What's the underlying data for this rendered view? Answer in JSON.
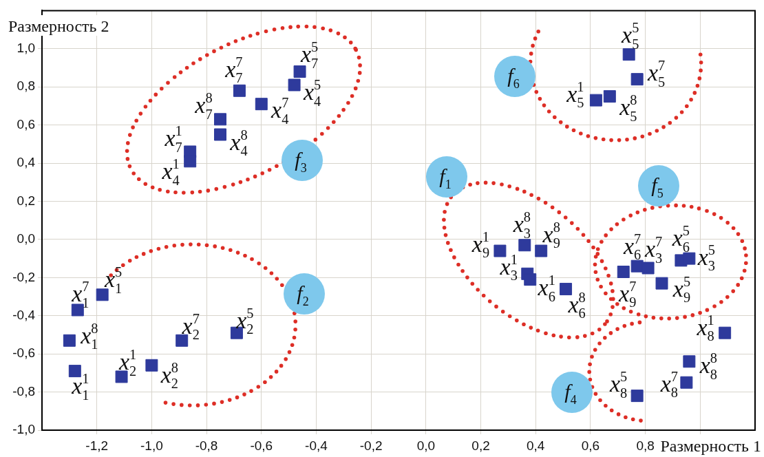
{
  "chart_data": {
    "type": "scatter",
    "xlabel": "Размерность 1",
    "ylabel": "Размерность 2",
    "xlim": [
      -1.4,
      1.2
    ],
    "ylim": [
      -1,
      1.2
    ],
    "xticks": [
      {
        "value": -1.2,
        "label": "-1,2"
      },
      {
        "value": -1,
        "label": "-1,0"
      },
      {
        "value": -0.8,
        "label": "-0,8"
      },
      {
        "value": -0.6,
        "label": "-0,6"
      },
      {
        "value": -0.4,
        "label": "-0,4"
      },
      {
        "value": -0.2,
        "label": "-0,2"
      },
      {
        "value": 0,
        "label": "0,0"
      },
      {
        "value": 0.2,
        "label": "0,2"
      },
      {
        "value": 0.4,
        "label": "0,4"
      },
      {
        "value": 0.6,
        "label": "0,6"
      },
      {
        "value": 0.8,
        "label": "0,8"
      },
      {
        "value": 1,
        "label": null
      }
    ],
    "yticks": [
      {
        "value": -1,
        "label": "-1,0"
      },
      {
        "value": -0.8,
        "label": "-0,8"
      },
      {
        "value": -0.6,
        "label": "-0,6"
      },
      {
        "value": -0.4,
        "label": "-0,4"
      },
      {
        "value": -0.2,
        "label": "-0,2"
      },
      {
        "value": 0,
        "label": "0,0"
      },
      {
        "value": 0.2,
        "label": "0,2"
      },
      {
        "value": 0.4,
        "label": "0,4"
      },
      {
        "value": 0.6,
        "label": "0,6"
      },
      {
        "value": 0.8,
        "label": "0,8"
      },
      {
        "value": 1,
        "label": "1,0"
      }
    ],
    "grid": true,
    "marker": "square",
    "series": [
      {
        "color": "#2e3a9c",
        "x": [
          -0.46,
          -0.48,
          -0.68,
          -0.6,
          -0.75,
          -0.75,
          -0.86,
          -0.86,
          0.74,
          0.77,
          0.67,
          0.62,
          -1.18,
          -1.27,
          -1.3,
          -1.28,
          -1.11,
          -1,
          -0.89,
          -0.69,
          0.27,
          0.36,
          0.42,
          0.37,
          0.38,
          0.51,
          0.72,
          0.77,
          0.81,
          0.86,
          0.93,
          0.96,
          1.09,
          0.96,
          0.95,
          0.77
        ],
        "values": [
          0.88,
          0.81,
          0.78,
          0.71,
          0.63,
          0.55,
          0.46,
          0.41,
          0.97,
          0.84,
          0.75,
          0.73,
          -0.29,
          -0.37,
          -0.53,
          -0.69,
          -0.72,
          -0.66,
          -0.53,
          -0.49,
          -0.06,
          -0.03,
          -0.06,
          -0.18,
          -0.21,
          -0.26,
          -0.17,
          -0.14,
          -0.15,
          -0.23,
          -0.11,
          -0.1,
          -0.49,
          -0.64,
          -0.75,
          -0.82
        ],
        "value_labels": [
          "x$^{5}$$_{7}$",
          "x$^{5}$$_{4}$",
          "x$^{7}$$_{7}$",
          "x$^{7}$$_{4}$",
          "x$^{8}$$_{7}$",
          "x$^{8}$$_{4}$",
          "x$^{1}$$_{7}$",
          "x$^{1}$$_{4}$",
          "x$^{5}$$_{5}$",
          "x$^{7}$$_{5}$",
          "x$^{8}$$_{5}$",
          "x$^{1}$$_{5}$",
          "x$^{5}$$_{1}$",
          "x$^{7}$$_{1}$",
          "x$^{8}$$_{1}$",
          "x$^{1}$$_{1}$",
          "x$^{1}$$_{2}$",
          "x$^{8}$$_{2}$",
          "x$^{7}$$_{2}$",
          "x$^{5}$$_{2}$",
          "x$^{1}$$_{9}$",
          "x$^{8}$$_{3}$",
          "x$^{8}$$_{9}$",
          "x$^{1}$$_{3}$",
          "x$^{1}$$_{6}$",
          "x$^{8}$$_{6}$",
          "x$^{7}$$_{9}$",
          "x$^{7}$$_{6}$",
          "x$^{7}$$_{3}$",
          "x$^{5}$$_{9}$",
          "x$^{5}$$_{6}$",
          "x$^{5}$$_{3}$",
          "x$^{1}$$_{8}$",
          "x$^{8}$$_{8}$",
          "x$^{7}$$_{8}$",
          "x$^{5}$$_{8}$"
        ]
      }
    ],
    "annotations": [
      "f$_{1}$",
      "f$_{2}$",
      "f$_{3}$",
      "f$_{4}$",
      "f$_{5}$",
      "f$_{6}$"
    ]
  }
}
